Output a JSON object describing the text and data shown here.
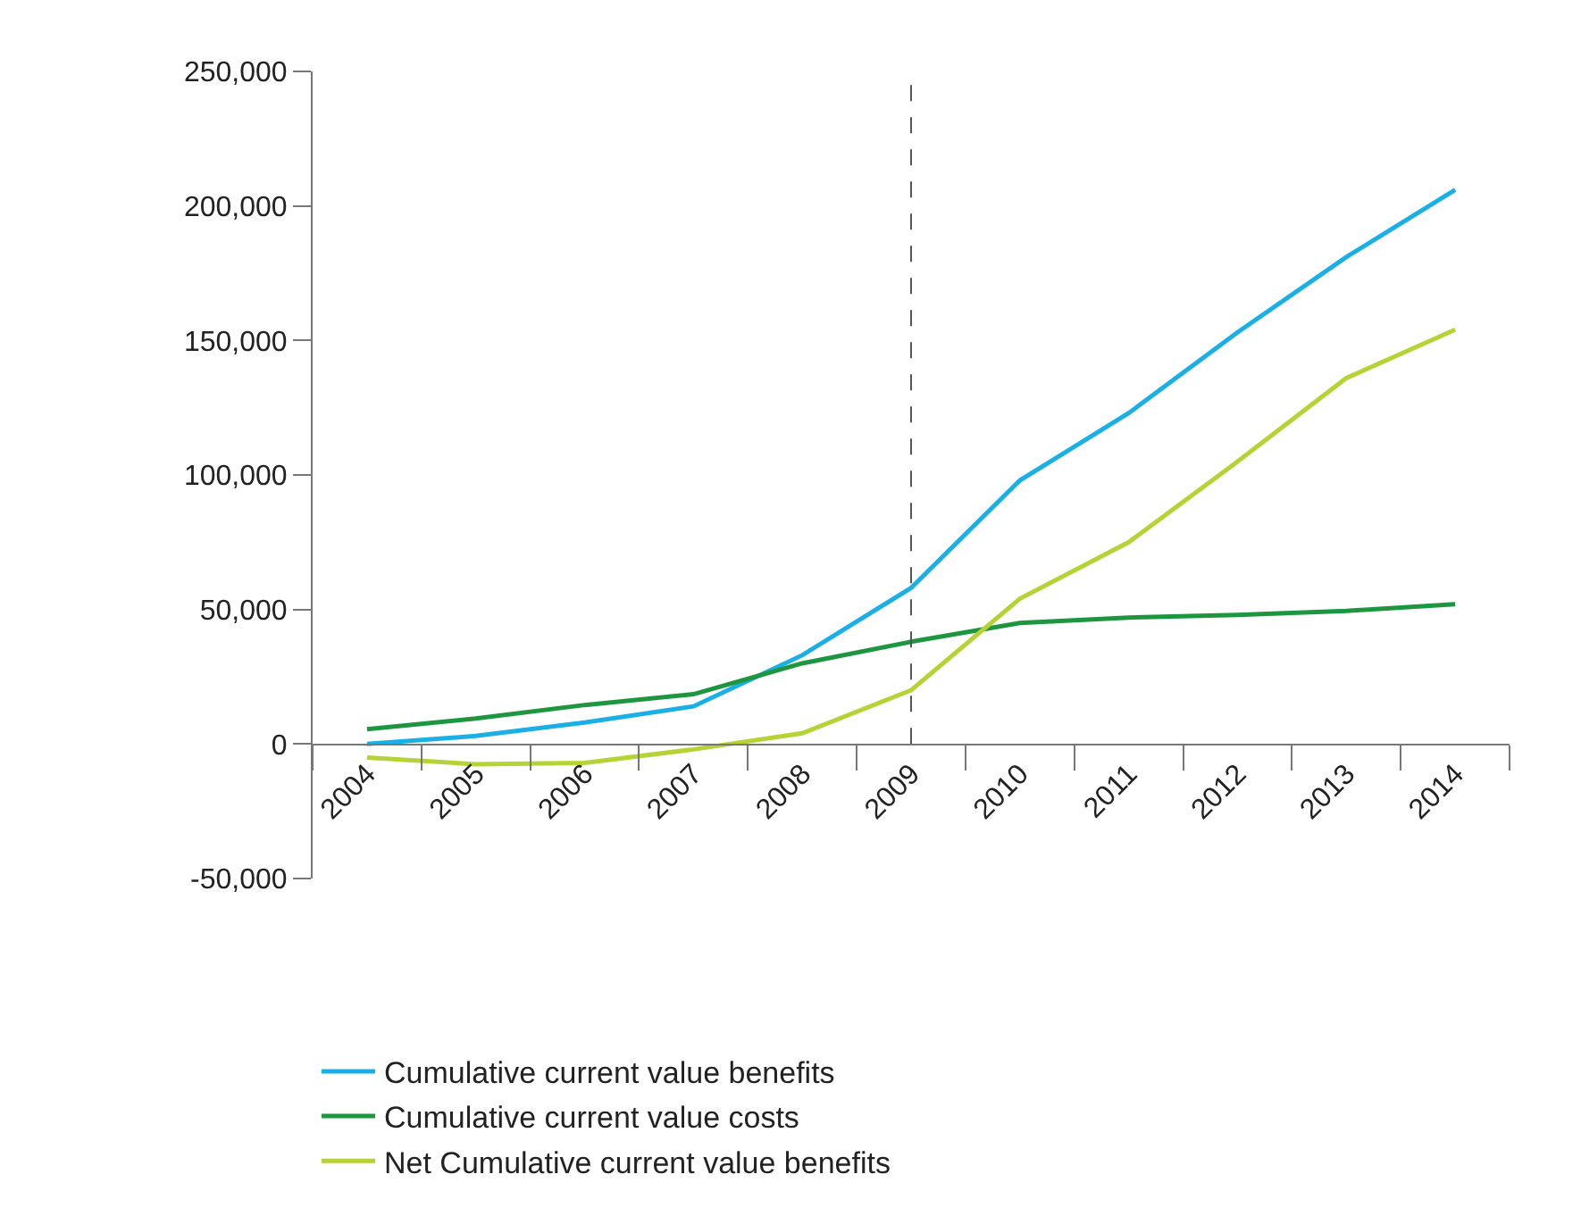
{
  "chart_data": {
    "type": "line",
    "categories": [
      "2004",
      "2005",
      "2006",
      "2007",
      "2008",
      "2009",
      "2010",
      "2011",
      "2012",
      "2013",
      "2014"
    ],
    "series": [
      {
        "name": "Cumulative current value benefits",
        "color": "#1ab0e6",
        "values": [
          0,
          3000,
          8000,
          14000,
          33000,
          58000,
          98000,
          123000,
          153000,
          181000,
          206000
        ]
      },
      {
        "name": "Cumulative current value costs",
        "color": "#1e9640",
        "values": [
          5500,
          9500,
          14500,
          18500,
          30000,
          38000,
          45000,
          47000,
          48000,
          49500,
          52000
        ]
      },
      {
        "name": "Net Cumulative current value benefits",
        "color": "#b5d334",
        "values": [
          -5000,
          -7500,
          -7000,
          -2000,
          4000,
          20000,
          54000,
          75000,
          105000,
          136000,
          154000
        ]
      }
    ],
    "ylim": [
      -50000,
      250000
    ],
    "yticks": [
      {
        "value": -50000,
        "label": "-50,000"
      },
      {
        "value": 0,
        "label": "0"
      },
      {
        "value": 50000,
        "label": "50,000"
      },
      {
        "value": 100000,
        "label": "100,000"
      },
      {
        "value": 150000,
        "label": "150,000"
      },
      {
        "value": 200000,
        "label": "200,000"
      },
      {
        "value": 250000,
        "label": "250,000"
      }
    ],
    "ref_lines": [
      {
        "axis": "x",
        "value": "2009",
        "color": "#555555",
        "line_style": "dashed"
      }
    ],
    "legend": "bottom",
    "marker": "none",
    "line_style": "solid"
  }
}
